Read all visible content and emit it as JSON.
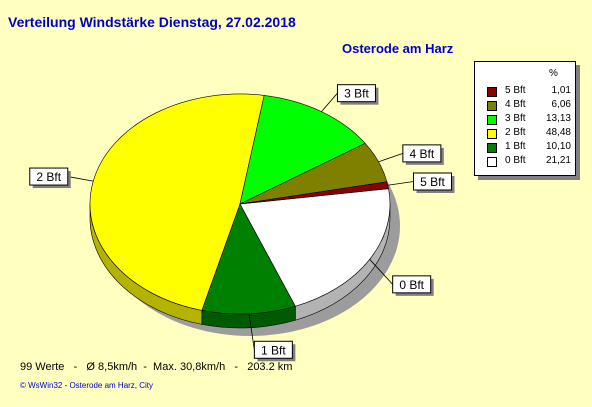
{
  "title": "Verteilung Windstärke  Dienstag, 27.02.2018",
  "subtitle": "Osterode am Harz",
  "summary": "99 Werte   -   Ø 8,5km/h  -  Max. 30,8km/h   -   203.2 km",
  "footer": "© WsWin32  -  Osterode am Harz, City",
  "legend": {
    "header": "%",
    "items": [
      {
        "label": "5 Bft",
        "value": "1,01",
        "color": "#8b0000"
      },
      {
        "label": "4 Bft",
        "value": "6,06",
        "color": "#808000"
      },
      {
        "label": "3 Bft",
        "value": "13,13",
        "color": "#00ff00"
      },
      {
        "label": "2 Bft",
        "value": "48,48",
        "color": "#ffff00"
      },
      {
        "label": "1 Bft",
        "value": "10,10",
        "color": "#008000"
      },
      {
        "label": "0 Bft",
        "value": "21,21",
        "color": "#ffffff"
      }
    ]
  },
  "chart_data": {
    "type": "pie",
    "title": "Verteilung Windstärke  Dienstag, 27.02.2018",
    "subtitle": "Osterode am Harz",
    "unit": "%",
    "slices": [
      {
        "name": "0 Bft",
        "value": 21.21,
        "color": "#ffffff"
      },
      {
        "name": "1 Bft",
        "value": 10.1,
        "color": "#008000"
      },
      {
        "name": "2 Bft",
        "value": 48.48,
        "color": "#ffff00"
      },
      {
        "name": "3 Bft",
        "value": 13.13,
        "color": "#00ff00"
      },
      {
        "name": "4 Bft",
        "value": 6.06,
        "color": "#808000"
      },
      {
        "name": "5 Bft",
        "value": 1.01,
        "color": "#8b0000"
      }
    ]
  }
}
